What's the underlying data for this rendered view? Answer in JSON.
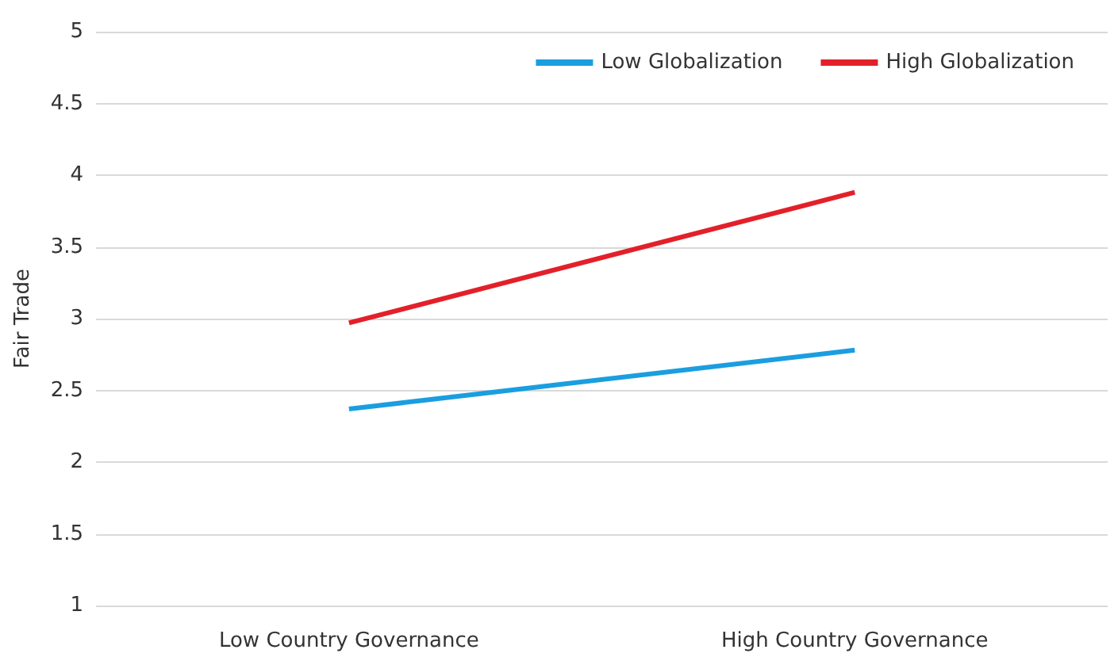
{
  "chart_data": {
    "type": "line",
    "ylabel": "Fair Trade",
    "categories": [
      "Low Country Governance",
      "High Country Governance"
    ],
    "series": [
      {
        "name": "Low Globalization",
        "color": "#1a9ee0",
        "values": [
          2.37,
          2.78
        ]
      },
      {
        "name": "High Globalization",
        "color": "#e3202a",
        "values": [
          2.97,
          3.88
        ]
      }
    ],
    "ylim": [
      1,
      5
    ],
    "yticks": [
      1,
      1.5,
      2,
      2.5,
      3,
      3.5,
      4,
      4.5,
      5
    ],
    "grid": "y",
    "legend": "top right",
    "marker": "none"
  }
}
